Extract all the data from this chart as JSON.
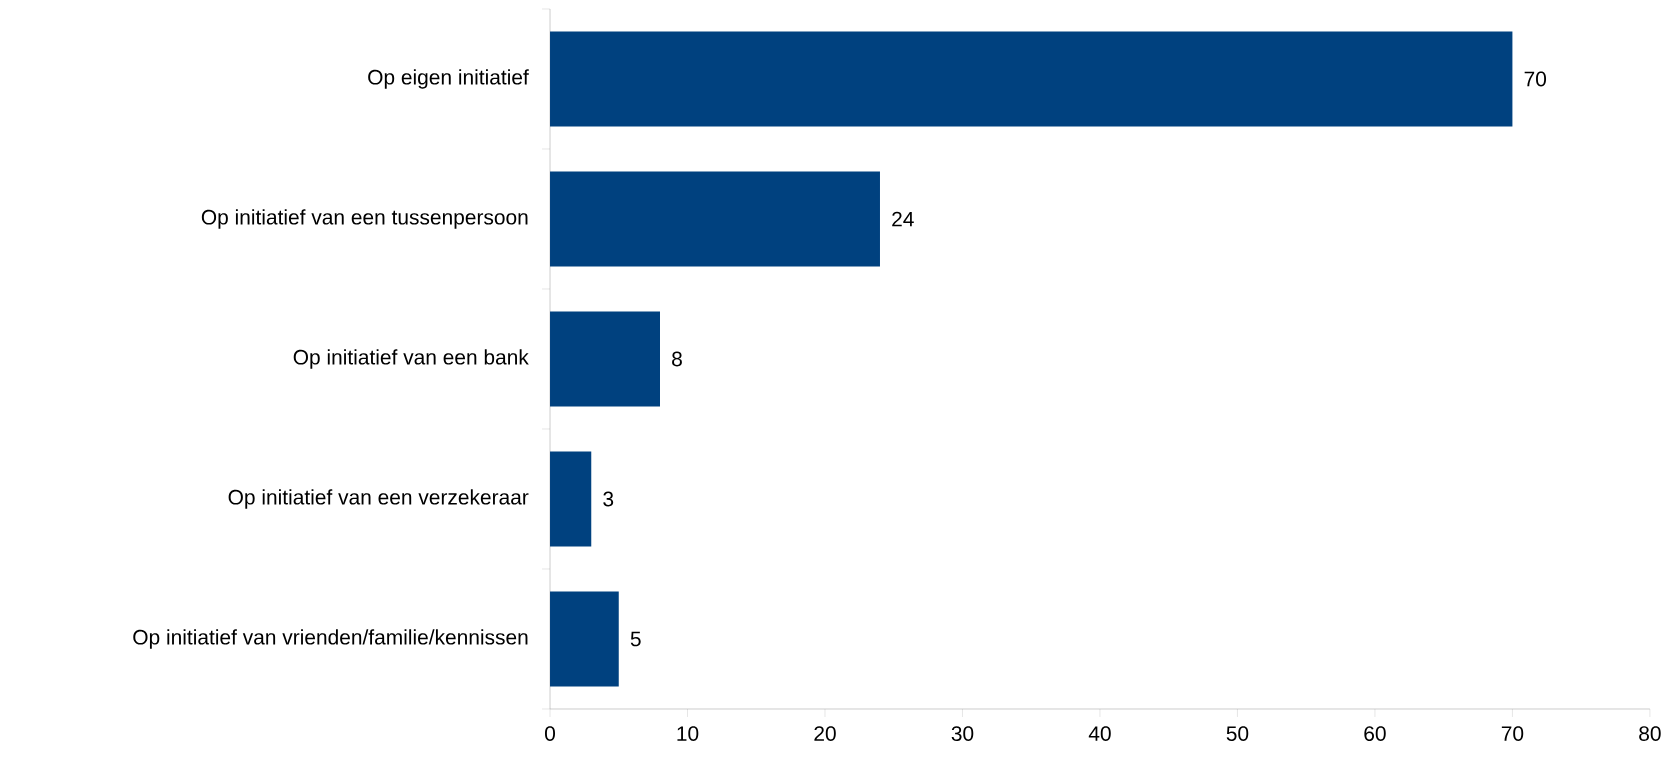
{
  "chart_data": {
    "type": "bar",
    "orientation": "horizontal",
    "categories": [
      "Op eigen initiatief",
      "Op initiatief van een tussenpersoon",
      "Op initiatief van een bank",
      "Op initiatief van een verzekeraar",
      "Op initiatief van vrienden/familie/kennissen"
    ],
    "values": [
      70,
      24,
      8,
      3,
      5
    ],
    "color": "#00417f",
    "xlim": [
      0,
      80
    ],
    "xticks": [
      0,
      10,
      20,
      30,
      40,
      50,
      60,
      70,
      80
    ],
    "data_labels": true
  }
}
